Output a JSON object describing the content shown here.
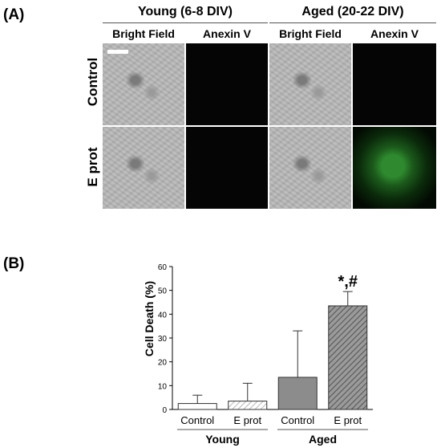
{
  "panel_a": {
    "label": "(A)",
    "groups": [
      {
        "title": "Young (6-8 DIV)",
        "columns": [
          "Bright Field",
          "Anexin V"
        ]
      },
      {
        "title": "Aged (20-22 DIV)",
        "columns": [
          "Bright Field",
          "Anexin V"
        ]
      }
    ],
    "rows": [
      "Control",
      "E prot"
    ],
    "tiles": [
      [
        "bright-field",
        "dark",
        "bright-field",
        "dark"
      ],
      [
        "bright-field",
        "dark",
        "bright-field",
        "green-fluorescence"
      ]
    ]
  },
  "panel_b": {
    "label": "(B)"
  },
  "chart_data": {
    "type": "bar",
    "categories": [
      "Control",
      "E prot",
      "Control",
      "E prot"
    ],
    "groups": [
      {
        "label": "Young",
        "categories": [
          "Control",
          "E prot"
        ]
      },
      {
        "label": "Aged",
        "categories": [
          "Control",
          "E prot"
        ]
      }
    ],
    "values": [
      2.5,
      3.5,
      13.5,
      43.5
    ],
    "errors": [
      3.5,
      7.5,
      19.5,
      6.0
    ],
    "fills": [
      "white",
      "light-hatched",
      "gray",
      "dark-hatched"
    ],
    "annotations": [
      {
        "category_index": 3,
        "text": "*,#"
      }
    ],
    "ylabel": "Cell Death (%)",
    "ylim": [
      0,
      60
    ],
    "yticks": [
      0,
      10,
      20,
      30,
      40,
      50,
      60
    ],
    "grid": false
  }
}
